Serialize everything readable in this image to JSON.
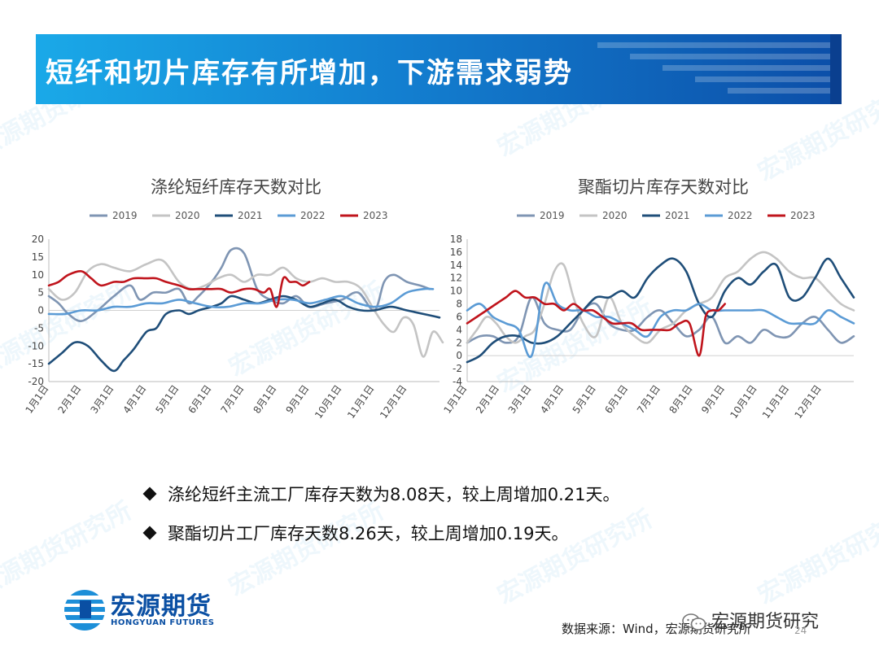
{
  "header": {
    "title": "短纤和切片库存有所增加，下游需求弱势"
  },
  "watermark": "宏源期货研究所",
  "colors": {
    "2019": "#7f95b3",
    "2020": "#c4c4c4",
    "2021": "#1f4e79",
    "2022": "#5b9bd5",
    "2023": "#c0141c"
  },
  "chart_data": [
    {
      "type": "line",
      "title": "涤纶短纤库存天数对比",
      "categories": [
        "1月1日",
        "2月1日",
        "3月1日",
        "4月1日",
        "5月1日",
        "6月1日",
        "7月1日",
        "8月1日",
        "9月1日",
        "10月1日",
        "11月1日",
        "12月1日"
      ],
      "ylim": [
        -20,
        20
      ],
      "yticks": [
        20,
        15,
        10,
        5,
        0,
        -5,
        -10,
        -15,
        -20
      ],
      "x_range": [
        0,
        12
      ],
      "legend_position": "top",
      "series": [
        {
          "name": "2019",
          "x": [
            0,
            0.3,
            0.6,
            1,
            1.5,
            2,
            2.5,
            2.8,
            3.2,
            3.6,
            4,
            4.3,
            4.6,
            5,
            5.3,
            5.6,
            6,
            6.4,
            6.8,
            7.2,
            7.6,
            8,
            8.5,
            9,
            9.5,
            10,
            10.3,
            10.6,
            11,
            11.4,
            11.7
          ],
          "y": [
            4,
            2,
            -1,
            -3,
            0,
            4,
            7,
            3,
            5,
            5,
            6,
            2,
            4,
            8,
            12,
            17,
            16,
            6,
            3,
            2,
            4,
            1,
            2,
            3,
            5,
            0,
            8,
            10,
            8,
            7,
            6
          ]
        },
        {
          "name": "2020",
          "x": [
            0,
            0.4,
            0.8,
            1.2,
            1.6,
            2,
            2.5,
            3,
            3.5,
            4,
            4.4,
            4.8,
            5.2,
            5.6,
            6,
            6.4,
            6.8,
            7.2,
            7.6,
            8,
            8.4,
            8.8,
            9.2,
            9.6,
            10,
            10.3,
            10.6,
            10.9,
            11.2,
            11.5,
            11.8,
            12.1
          ],
          "y": [
            6,
            3,
            5,
            11,
            13,
            12,
            11,
            13,
            14,
            8,
            6,
            7,
            9,
            10,
            8,
            10,
            10,
            12,
            9,
            8,
            9,
            8,
            8,
            6,
            0,
            -4,
            -6,
            -2,
            -4,
            -13,
            -6,
            -9
          ]
        },
        {
          "name": "2021",
          "x": [
            0,
            0.4,
            0.8,
            1.2,
            1.6,
            2,
            2.3,
            2.6,
            3,
            3.3,
            3.6,
            4,
            4.3,
            4.6,
            5,
            5.3,
            5.6,
            6,
            6.4,
            6.8,
            7.2,
            7.6,
            8,
            8.4,
            8.8,
            9.2,
            9.6,
            10,
            10.5,
            11,
            11.5,
            12
          ],
          "y": [
            -15,
            -12,
            -9,
            -10,
            -14,
            -17,
            -14,
            -11,
            -6,
            -5,
            -1,
            0,
            -1,
            0,
            1,
            2,
            4,
            3,
            2,
            3,
            4,
            3,
            1,
            2,
            3,
            1,
            0,
            0,
            1,
            0,
            -1,
            -2
          ]
        },
        {
          "name": "2022",
          "x": [
            0,
            0.5,
            1,
            1.5,
            2,
            2.5,
            3,
            3.5,
            4,
            4.5,
            5,
            5.5,
            6,
            6.5,
            7,
            7.5,
            8,
            8.5,
            9,
            9.5,
            10,
            10.5,
            11,
            11.5,
            11.8
          ],
          "y": [
            -1,
            -1,
            0,
            0,
            1,
            1,
            2,
            2,
            3,
            2,
            1,
            1,
            2,
            2,
            3,
            3,
            2,
            3,
            4,
            2,
            1,
            2,
            5,
            6,
            6
          ]
        },
        {
          "name": "2023",
          "x": [
            0,
            0.3,
            0.6,
            1,
            1.3,
            1.6,
            2,
            2.3,
            2.6,
            3,
            3.3,
            3.6,
            4,
            4.3,
            4.6,
            5,
            5.3,
            5.6,
            6,
            6.3,
            6.6,
            6.8,
            7,
            7.2,
            7.4,
            7.6,
            7.8,
            8
          ],
          "y": [
            7,
            8,
            10,
            11,
            9,
            7,
            8,
            8,
            9,
            9,
            9,
            8,
            7,
            6,
            6,
            6,
            6,
            5,
            6,
            6,
            5,
            6,
            1,
            9,
            8,
            8,
            7,
            8
          ]
        }
      ]
    },
    {
      "type": "line",
      "title": "聚酯切片库存天数对比",
      "categories": [
        "1月1日",
        "2月1日",
        "3月1日",
        "4月1日",
        "5月1日",
        "6月1日",
        "7月1日",
        "8月1日",
        "9月1日",
        "10月1日",
        "11月1日",
        "12月1日"
      ],
      "ylim": [
        -4,
        18
      ],
      "yticks": [
        18,
        16,
        14,
        12,
        10,
        8,
        6,
        4,
        2,
        0,
        -2,
        -4
      ],
      "x_range": [
        0,
        12
      ],
      "legend_position": "top",
      "series": [
        {
          "name": "2019",
          "x": [
            0,
            0.4,
            0.8,
            1.2,
            1.6,
            2,
            2.4,
            2.8,
            3.2,
            3.6,
            4,
            4.4,
            4.8,
            5.2,
            5.6,
            6,
            6.4,
            6.8,
            7.2,
            7.6,
            8,
            8.4,
            8.8,
            9.2,
            9.6,
            10,
            10.4,
            10.8,
            11.2,
            11.6,
            12
          ],
          "y": [
            2,
            3,
            3,
            2,
            3,
            9,
            5,
            4,
            4,
            7,
            8,
            5,
            4,
            4,
            6,
            7,
            5,
            3,
            4,
            6,
            2,
            3,
            2,
            4,
            3,
            3,
            5,
            6,
            4,
            2,
            3
          ]
        },
        {
          "name": "2020",
          "x": [
            0,
            0.3,
            0.6,
            0.9,
            1.2,
            1.5,
            1.8,
            2.1,
            2.4,
            2.7,
            3,
            3.3,
            3.6,
            4,
            4.4,
            4.8,
            5.2,
            5.6,
            6,
            6.4,
            6.8,
            7.2,
            7.6,
            8,
            8.4,
            8.8,
            9.2,
            9.6,
            10,
            10.4,
            10.8,
            11.2,
            11.6,
            12
          ],
          "y": [
            2,
            4,
            6,
            5,
            3,
            2,
            3,
            4,
            8,
            13,
            14,
            9,
            5,
            3,
            9,
            5,
            3,
            2,
            4,
            5,
            7,
            8,
            9,
            12,
            13,
            15,
            16,
            15,
            13,
            12,
            12,
            10,
            8,
            7
          ]
        },
        {
          "name": "2021",
          "x": [
            0,
            0.4,
            0.8,
            1.2,
            1.6,
            2,
            2.4,
            2.8,
            3.2,
            3.6,
            4,
            4.4,
            4.8,
            5.2,
            5.6,
            6,
            6.4,
            6.8,
            7.2,
            7.6,
            8,
            8.4,
            8.8,
            9.2,
            9.6,
            10,
            10.4,
            10.8,
            11.2,
            11.6,
            12
          ],
          "y": [
            -1,
            0,
            2,
            3,
            3,
            2,
            2,
            3,
            5,
            7,
            9,
            9,
            10,
            9,
            12,
            14,
            15,
            13,
            8,
            6,
            10,
            12,
            11,
            13,
            14,
            9,
            9,
            12,
            15,
            12,
            9
          ]
        },
        {
          "name": "2022",
          "x": [
            0,
            0.4,
            0.8,
            1.2,
            1.6,
            2,
            2.4,
            2.8,
            3.2,
            3.6,
            4,
            4.4,
            4.8,
            5.2,
            5.6,
            6,
            6.4,
            6.8,
            7.2,
            7.6,
            8,
            8.4,
            8.8,
            9.2,
            9.6,
            10,
            10.4,
            10.8,
            11.2,
            11.6,
            12
          ],
          "y": [
            7,
            8,
            6,
            5,
            4,
            0,
            11,
            8,
            7,
            7,
            6,
            6,
            5,
            4,
            3,
            6,
            7,
            7,
            8,
            7,
            7,
            7,
            7,
            7,
            6,
            5,
            5,
            5,
            7,
            6,
            5
          ]
        },
        {
          "name": "2023",
          "x": [
            0,
            0.3,
            0.6,
            0.9,
            1.2,
            1.5,
            1.8,
            2.1,
            2.4,
            2.7,
            3,
            3.3,
            3.6,
            3.9,
            4.2,
            4.5,
            4.8,
            5.1,
            5.4,
            5.7,
            6,
            6.3,
            6.6,
            6.9,
            7.2,
            7.4,
            7.6,
            7.8,
            8
          ],
          "y": [
            5,
            6,
            7,
            8,
            9,
            10,
            9,
            9,
            8,
            8,
            7,
            8,
            7,
            7,
            6,
            5,
            5,
            5,
            4,
            4,
            4,
            4,
            5,
            5,
            0,
            6,
            7,
            7,
            8
          ]
        }
      ]
    }
  ],
  "bullets": [
    "涤纶短纤主流工厂库存天数为8.08天，较上周增加0.21天。",
    "聚酯切片工厂库存天数8.26天，较上周增加0.19天。"
  ],
  "logo": {
    "cn": "宏源期货",
    "en": "HONGYUAN FUTURES"
  },
  "footer": {
    "source": "数据来源：Wind，宏源期货研究所",
    "wechat": "宏源期货研究",
    "page": "24"
  }
}
